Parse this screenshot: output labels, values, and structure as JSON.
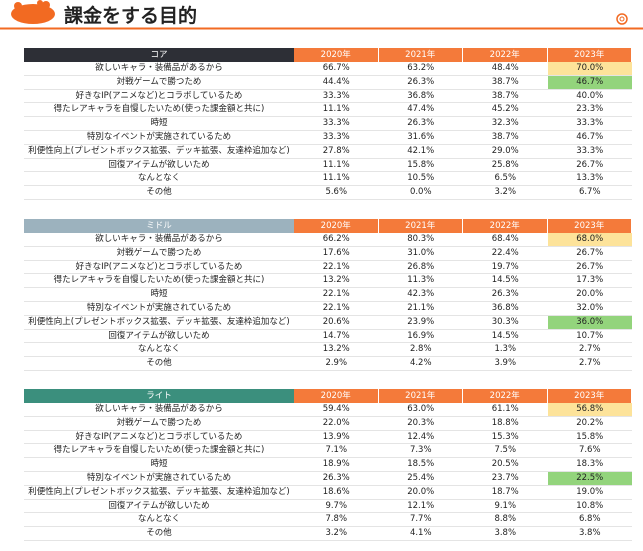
{
  "title": "課金をする目的",
  "sections": [
    {
      "name": "コア",
      "years": [
        "2020年",
        "2021年",
        "2022年",
        "2023年"
      ],
      "rows": [
        {
          "label": "欲しいキャラ・装備品があるから",
          "values": [
            "66.7%",
            "63.2%",
            "48.4%",
            "70.0%"
          ]
        },
        {
          "label": "対戦ゲームで勝つため",
          "values": [
            "44.4%",
            "26.3%",
            "38.7%",
            "46.7%"
          ]
        },
        {
          "label": "好きなIP(アニメなど)とコラボしているため",
          "values": [
            "33.3%",
            "36.8%",
            "38.7%",
            "40.0%"
          ]
        },
        {
          "label": "得たレアキャラを自慢したいため(使った課金額と共に)",
          "values": [
            "11.1%",
            "47.4%",
            "45.2%",
            "23.3%"
          ]
        },
        {
          "label": "時短",
          "values": [
            "33.3%",
            "26.3%",
            "32.3%",
            "33.3%"
          ]
        },
        {
          "label": "特別なイベントが実施されているため",
          "values": [
            "33.3%",
            "31.6%",
            "38.7%",
            "46.7%"
          ]
        },
        {
          "label": "利便性向上(プレゼントボックス拡張、デッキ拡張、友達枠追加など)",
          "values": [
            "27.8%",
            "42.1%",
            "29.0%",
            "33.3%"
          ]
        },
        {
          "label": "回復アイテムが欲しいため",
          "values": [
            "11.1%",
            "15.8%",
            "25.8%",
            "26.7%"
          ]
        },
        {
          "label": "なんとなく",
          "values": [
            "11.1%",
            "10.5%",
            "6.5%",
            "13.3%"
          ]
        },
        {
          "label": "その他",
          "values": [
            "5.6%",
            "0.0%",
            "3.2%",
            "6.7%"
          ]
        }
      ]
    },
    {
      "name": "ミドル",
      "years": [
        "2020年",
        "2021年",
        "2022年",
        "2023年"
      ],
      "rows": [
        {
          "label": "欲しいキャラ・装備品があるから",
          "values": [
            "66.2%",
            "80.3%",
            "68.4%",
            "68.0%"
          ]
        },
        {
          "label": "対戦ゲームで勝つため",
          "values": [
            "17.6%",
            "31.0%",
            "22.4%",
            "26.7%"
          ]
        },
        {
          "label": "好きなIP(アニメなど)とコラボしているため",
          "values": [
            "22.1%",
            "26.8%",
            "19.7%",
            "26.7%"
          ]
        },
        {
          "label": "得たレアキャラを自慢したいため(使った課金額と共に)",
          "values": [
            "13.2%",
            "11.3%",
            "14.5%",
            "17.3%"
          ]
        },
        {
          "label": "時短",
          "values": [
            "22.1%",
            "42.3%",
            "26.3%",
            "20.0%"
          ]
        },
        {
          "label": "特別なイベントが実施されているため",
          "values": [
            "22.1%",
            "21.1%",
            "36.8%",
            "32.0%"
          ]
        },
        {
          "label": "利便性向上(プレゼントボックス拡張、デッキ拡張、友達枠追加など)",
          "values": [
            "20.6%",
            "23.9%",
            "30.3%",
            "36.0%"
          ]
        },
        {
          "label": "回復アイテムが欲しいため",
          "values": [
            "14.7%",
            "16.9%",
            "14.5%",
            "10.7%"
          ]
        },
        {
          "label": "なんとなく",
          "values": [
            "13.2%",
            "2.8%",
            "1.3%",
            "2.7%"
          ]
        },
        {
          "label": "その他",
          "values": [
            "2.9%",
            "4.2%",
            "3.9%",
            "2.7%"
          ]
        }
      ]
    },
    {
      "name": "ライト",
      "years": [
        "2020年",
        "2021年",
        "2022年",
        "2023年"
      ],
      "rows": [
        {
          "label": "欲しいキャラ・装備品があるから",
          "values": [
            "59.4%",
            "63.0%",
            "61.1%",
            "56.8%"
          ]
        },
        {
          "label": "対戦ゲームで勝つため",
          "values": [
            "22.0%",
            "20.3%",
            "18.8%",
            "20.2%"
          ]
        },
        {
          "label": "好きなIP(アニメなど)とコラボしているため",
          "values": [
            "13.9%",
            "12.4%",
            "15.3%",
            "15.8%"
          ]
        },
        {
          "label": "得たレアキャラを自慢したいため(使った課金額と共に)",
          "values": [
            "7.1%",
            "7.3%",
            "7.5%",
            "7.6%"
          ]
        },
        {
          "label": "時短",
          "values": [
            "18.9%",
            "18.5%",
            "20.5%",
            "18.3%"
          ]
        },
        {
          "label": "特別なイベントが実施されているため",
          "values": [
            "26.3%",
            "25.4%",
            "23.7%",
            "22.5%"
          ]
        },
        {
          "label": "利便性向上(プレゼントボックス拡張、デッキ拡張、友達枠追加など)",
          "values": [
            "18.6%",
            "20.0%",
            "18.7%",
            "19.0%"
          ]
        },
        {
          "label": "回復アイテムが欲しいため",
          "values": [
            "9.7%",
            "12.1%",
            "9.1%",
            "10.8%"
          ]
        },
        {
          "label": "なんとなく",
          "values": [
            "7.8%",
            "7.7%",
            "8.8%",
            "6.8%"
          ]
        },
        {
          "label": "その他",
          "values": [
            "3.2%",
            "4.1%",
            "3.8%",
            "3.8%"
          ]
        }
      ]
    }
  ]
}
